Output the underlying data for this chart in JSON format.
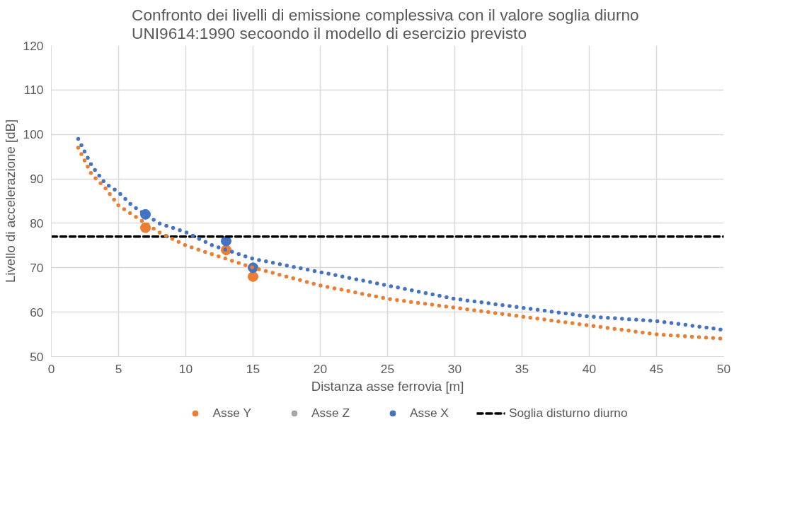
{
  "chart_data": {
    "type": "scatter",
    "title": "Confronto  dei livelli di emissione complessiva con il valore soglia diurno\nUNI9614:1990 secoondo il modello di esercizio previsto",
    "xlabel": "Distanza asse ferrovia [m]",
    "ylabel": "Livello di accelerazione [dB]",
    "xlim": [
      0,
      50
    ],
    "xticks": [
      0,
      5,
      10,
      15,
      20,
      25,
      30,
      35,
      40,
      45,
      50
    ],
    "ylim": [
      50,
      120
    ],
    "yticks": [
      50,
      60,
      70,
      80,
      90,
      100,
      110,
      120
    ],
    "grid": true,
    "legend": "bottom",
    "marker": "circle",
    "series": [
      {
        "name": "Asse Y",
        "color": "#ed7d31",
        "x": [
          7,
          13,
          15
        ],
        "values": [
          79,
          74,
          68
        ]
      },
      {
        "name": "Asse Z",
        "color": "#a5a5a5"
      },
      {
        "name": "Asse X",
        "color": "#4472c4",
        "x": [
          7,
          13,
          15
        ],
        "values": [
          82,
          76,
          70
        ]
      },
      {
        "name": "Soglia disturno diurno",
        "type": "line",
        "marker": "none",
        "line_style": "dashed",
        "color": "#000000",
        "x": [
          0,
          50
        ],
        "values": [
          77,
          77
        ]
      },
      {
        "type": "line",
        "marker": "none",
        "line_style": "dotted",
        "color": "#ed7d31",
        "x": [
          2,
          3,
          4,
          5,
          6,
          8,
          10,
          12,
          15,
          20,
          25,
          30,
          35,
          40,
          45,
          50
        ],
        "values": [
          97,
          91,
          88,
          84,
          82,
          78,
          75,
          73,
          70,
          66,
          63,
          61,
          59,
          57,
          55,
          54
        ]
      },
      {
        "type": "line",
        "marker": "none",
        "line_style": "dotted",
        "color": "#4472c4",
        "x": [
          2,
          3,
          4,
          5,
          6,
          8,
          10,
          12,
          15,
          20,
          25,
          30,
          35,
          40,
          45,
          50
        ],
        "values": [
          99,
          93,
          89,
          87,
          84,
          80,
          78,
          75,
          72,
          69,
          66,
          63,
          61,
          59,
          58,
          56
        ]
      }
    ]
  }
}
